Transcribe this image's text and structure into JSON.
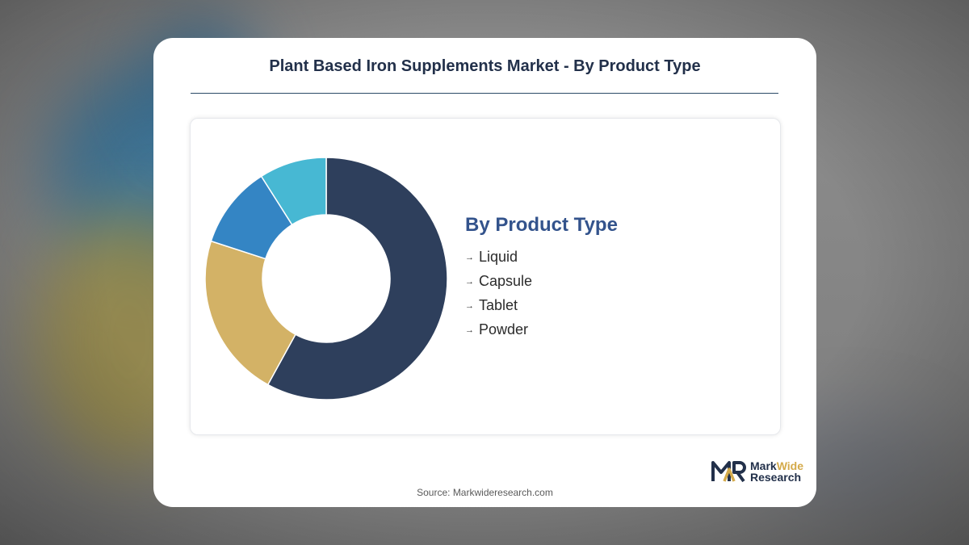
{
  "title": "Plant Based Iron Supplements Market - By Product Type",
  "chart_data": {
    "type": "pie",
    "title": "Plant Based Iron Supplements Market - By Product Type",
    "legend_title": "By Product Type",
    "legend_position": "right",
    "categories": [
      "Liquid",
      "Capsule",
      "Tablet",
      "Powder"
    ],
    "values": [
      58,
      22,
      11,
      9
    ],
    "colors": [
      "#2e3f5c",
      "#d3b266",
      "#3485c4",
      "#47b8d3"
    ]
  },
  "logo": {
    "word1": "Mark",
    "word2": "Wide",
    "word3": "Research",
    "mark": "MWR"
  },
  "source": "Source: Markwideresearch.com"
}
